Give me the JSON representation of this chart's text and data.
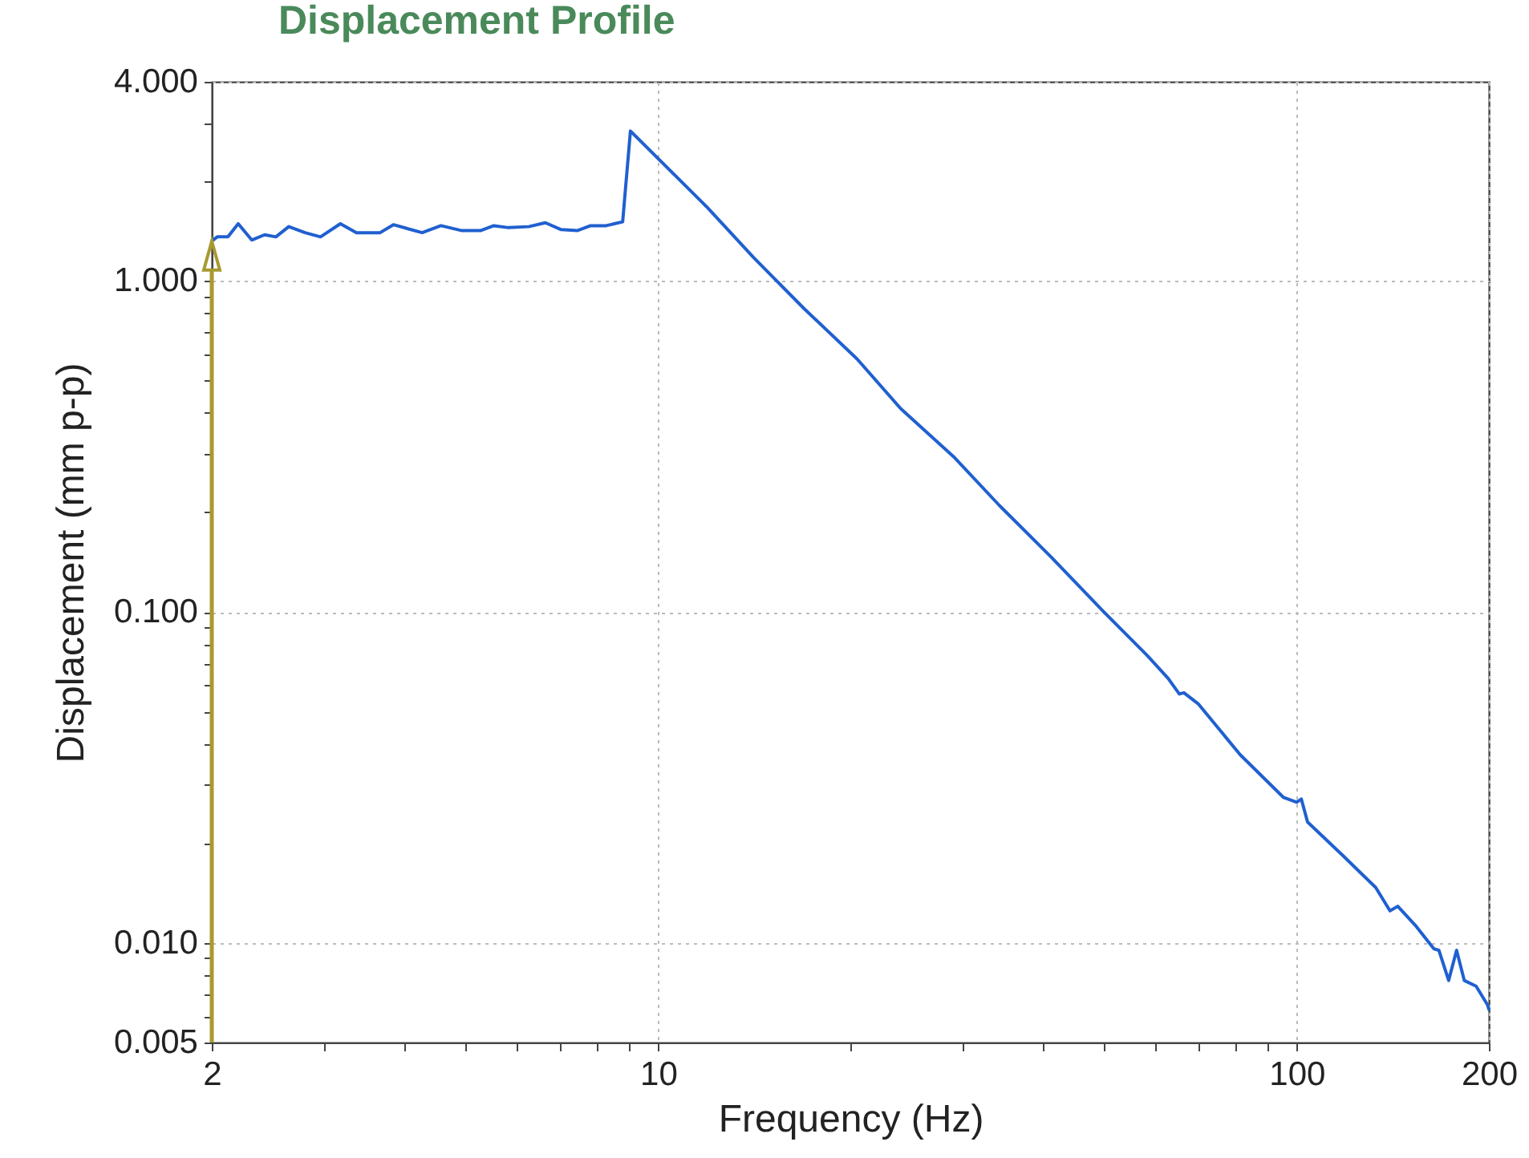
{
  "chart_data": {
    "type": "line",
    "title": "Displacement Profile",
    "xlabel": "Frequency (Hz)",
    "ylabel": "Displacement (mm p-p)",
    "log": "xy",
    "grid": true,
    "line_style": "solid",
    "xlim": [
      2,
      200
    ],
    "ylim": [
      0.005,
      4
    ],
    "xticks": [
      2,
      {
        "value": 3,
        "label": null
      },
      {
        "value": 4,
        "label": null
      },
      {
        "value": 5,
        "label": null
      },
      {
        "value": 6,
        "label": null
      },
      {
        "value": 7,
        "label": null
      },
      {
        "value": 8,
        "label": null
      },
      {
        "value": 9,
        "label": null
      },
      10,
      {
        "value": 20,
        "label": null
      },
      {
        "value": 30,
        "label": null
      },
      {
        "value": 40,
        "label": null
      },
      {
        "value": 50,
        "label": null
      },
      {
        "value": 60,
        "label": null
      },
      {
        "value": 70,
        "label": null
      },
      {
        "value": 80,
        "label": null
      },
      {
        "value": 90,
        "label": null
      },
      100,
      200
    ],
    "yticks": [
      {
        "value": 0.005,
        "label": "0.005"
      },
      {
        "value": 0.006,
        "label": null
      },
      {
        "value": 0.007,
        "label": null
      },
      {
        "value": 0.008,
        "label": null
      },
      {
        "value": 0.009,
        "label": null
      },
      {
        "value": 0.01,
        "label": "0.010"
      },
      {
        "value": 0.02,
        "label": null
      },
      {
        "value": 0.03,
        "label": null
      },
      {
        "value": 0.04,
        "label": null
      },
      {
        "value": 0.05,
        "label": null
      },
      {
        "value": 0.06,
        "label": null
      },
      {
        "value": 0.07,
        "label": null
      },
      {
        "value": 0.08,
        "label": null
      },
      {
        "value": 0.09,
        "label": null
      },
      {
        "value": 0.1,
        "label": "0.100"
      },
      {
        "value": 0.2,
        "label": null
      },
      {
        "value": 0.3,
        "label": null
      },
      {
        "value": 0.4,
        "label": null
      },
      {
        "value": 0.5,
        "label": null
      },
      {
        "value": 0.6,
        "label": null
      },
      {
        "value": 0.7,
        "label": null
      },
      {
        "value": 0.8,
        "label": null
      },
      {
        "value": 0.9,
        "label": null
      },
      {
        "value": 1,
        "label": "1.000"
      },
      {
        "value": 2,
        "label": null
      },
      {
        "value": 3,
        "label": null
      },
      {
        "value": 4,
        "label": "4.000"
      }
    ],
    "series": [
      {
        "color": "#2060d0",
        "x": [
          2,
          2.04,
          2.12,
          2.2,
          2.31,
          2.42,
          2.52,
          2.64,
          2.8,
          2.96,
          3.18,
          3.37,
          3.67,
          3.85,
          4.27,
          4.57,
          4.93,
          5.27,
          5.53,
          5.83,
          6.27,
          6.66,
          7.05,
          7.47,
          7.84,
          8.29,
          8.8,
          9.05,
          11.9,
          14.1,
          16.9,
          20.5,
          24,
          29,
          34.3,
          41.2,
          49.9,
          58.3,
          62.9,
          65.5,
          66.6,
          70.1,
          81.6,
          95.4,
          100,
          101.7,
          104,
          118,
          133,
          140,
          144,
          154,
          164,
          167,
          173,
          178,
          183,
          191,
          199,
          200
        ],
        "values": [
          1.32,
          1.36,
          1.36,
          1.49,
          1.33,
          1.38,
          1.36,
          1.46,
          1.4,
          1.36,
          1.49,
          1.4,
          1.4,
          1.48,
          1.4,
          1.47,
          1.42,
          1.42,
          1.47,
          1.45,
          1.46,
          1.5,
          1.43,
          1.42,
          1.47,
          1.47,
          1.51,
          2.84,
          1.68,
          1.18,
          0.828,
          0.581,
          0.411,
          0.295,
          0.209,
          0.147,
          0.1,
          0.074,
          0.063,
          0.0565,
          0.057,
          0.0528,
          0.037,
          0.0275,
          0.0266,
          0.0272,
          0.0232,
          0.0184,
          0.0147,
          0.0125,
          0.0129,
          0.0112,
          0.0096,
          0.0095,
          0.0077,
          0.0095,
          0.0077,
          0.0074,
          0.0065,
          0.0063
        ]
      }
    ]
  }
}
